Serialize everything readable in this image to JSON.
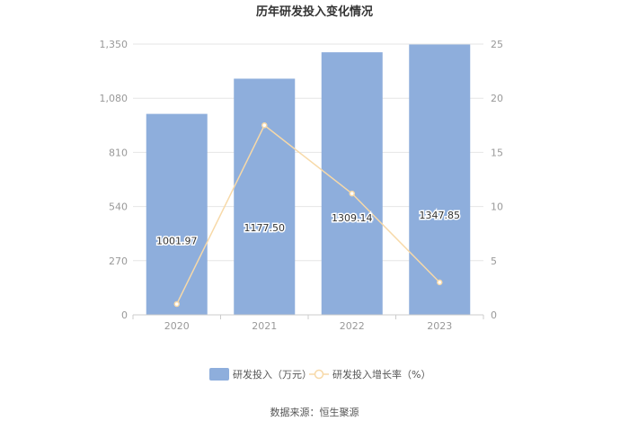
{
  "chart_data": {
    "type": "bar",
    "title": "历年研发投入变化情况",
    "categories": [
      "2020",
      "2021",
      "2022",
      "2023"
    ],
    "series": [
      {
        "name": "研发投入（万元）",
        "type": "bar",
        "axis": "left",
        "values": [
          1001.97,
          1177.5,
          1309.14,
          1347.85
        ],
        "labels": [
          "1001.97",
          "1177.50",
          "1309.14",
          "1347.85"
        ],
        "color": "#8eaedc"
      },
      {
        "name": "研发投入增长率（%）",
        "type": "line",
        "axis": "right",
        "values": [
          1.0,
          17.5,
          11.2,
          3.0
        ],
        "color": "#f7d9a8"
      }
    ],
    "y_left": {
      "ylim": [
        0,
        1350
      ],
      "ticks": [
        "0",
        "270",
        "540",
        "810",
        "1,080",
        "1,350"
      ]
    },
    "y_right": {
      "ylim": [
        0,
        25
      ],
      "ticks": [
        "0",
        "5",
        "10",
        "15",
        "20",
        "25"
      ]
    },
    "grid": true,
    "legend_position": "bottom"
  },
  "source": "数据来源：恒生聚源"
}
